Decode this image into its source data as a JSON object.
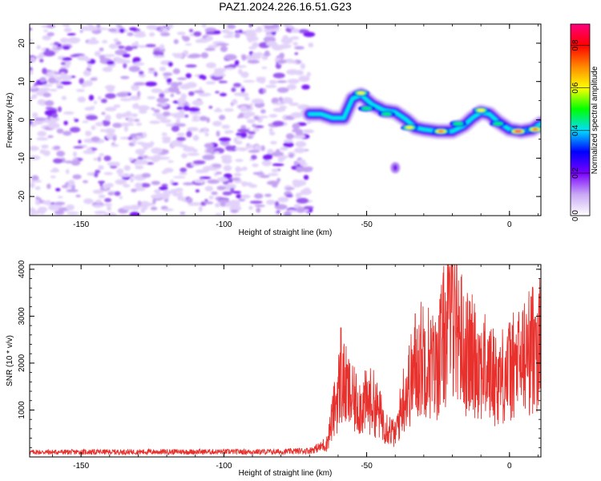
{
  "page": {
    "title": "PAZ1.2024.226.16.51.G23"
  },
  "chart_data": [
    {
      "type": "heatmap",
      "xlabel": "Height of straight line (km)",
      "ylabel": "Frequency (Hz)",
      "xlim": [
        -168,
        11
      ],
      "ylim": [
        -25,
        25
      ],
      "xticks": [
        -150,
        -100,
        -50,
        0
      ],
      "yticks": [
        -20,
        -10,
        0,
        10,
        20
      ],
      "noise_region": {
        "x": [
          -168,
          -70
        ],
        "y": [
          -25,
          25
        ]
      },
      "ridge": [
        {
          "x": -70,
          "y": 1.5
        },
        {
          "x": -66,
          "y": 1.5
        },
        {
          "x": -62,
          "y": 0.5
        },
        {
          "x": -58,
          "y": 0.5
        },
        {
          "x": -55,
          "y": 5.5
        },
        {
          "x": -52,
          "y": 6.5
        },
        {
          "x": -48,
          "y": 4.0
        },
        {
          "x": -44,
          "y": 2.5
        },
        {
          "x": -40,
          "y": 2.0
        },
        {
          "x": -36,
          "y": 0.0
        },
        {
          "x": -33,
          "y": -2.0
        },
        {
          "x": -30,
          "y": -2.5
        },
        {
          "x": -25,
          "y": -3.0
        },
        {
          "x": -20,
          "y": -3.0
        },
        {
          "x": -16,
          "y": -1.5
        },
        {
          "x": -13,
          "y": 0.5
        },
        {
          "x": -10,
          "y": 2.0
        },
        {
          "x": -7,
          "y": 1.5
        },
        {
          "x": -4,
          "y": -0.5
        },
        {
          "x": 0,
          "y": -2.5
        },
        {
          "x": 4,
          "y": -3.0
        },
        {
          "x": 8,
          "y": -2.5
        },
        {
          "x": 11,
          "y": -1.0
        }
      ],
      "peaks": [
        {
          "x": -52,
          "y": 7,
          "amp": 0.6
        },
        {
          "x": -50,
          "y": 3,
          "amp": 0.55
        },
        {
          "x": -43,
          "y": 1.5,
          "amp": 0.55
        },
        {
          "x": -35,
          "y": -2,
          "amp": 0.7
        },
        {
          "x": -24,
          "y": -3,
          "amp": 0.75
        },
        {
          "x": -18,
          "y": -1,
          "amp": 0.5
        },
        {
          "x": -10,
          "y": 2.5,
          "amp": 0.65
        },
        {
          "x": -4,
          "y": -1,
          "amp": 0.5
        },
        {
          "x": 3,
          "y": -3,
          "amp": 0.9
        },
        {
          "x": 9,
          "y": -2.5,
          "amp": 0.75
        }
      ],
      "isolated_blob": {
        "x": -40,
        "y": -12.5
      },
      "colorbar": {
        "label": "Normalized spectral amplitude",
        "range": [
          0,
          0.9
        ],
        "ticks": [
          "0.0",
          "0.2",
          "0.4",
          "0.6",
          "0.8"
        ],
        "colors": [
          "#ffffff",
          "#c9a8f5",
          "#7a00ff",
          "#0000ff",
          "#00ddff",
          "#00ff00",
          "#ffff00",
          "#ff8800",
          "#ff0000",
          "#ff0080"
        ]
      }
    },
    {
      "type": "line",
      "xlabel": "Height of straight line (km)",
      "ylabel": "SNR (10 * v/v)",
      "xlim": [
        -168,
        11
      ],
      "ylim": [
        0,
        4100
      ],
      "xticks": [
        -150,
        -100,
        -50,
        0
      ],
      "yticks": [
        1000,
        2000,
        3000,
        4000
      ],
      "color": "#e8302c",
      "envelope": [
        {
          "x": -168,
          "y": 120
        },
        {
          "x": -120,
          "y": 130
        },
        {
          "x": -80,
          "y": 130
        },
        {
          "x": -70,
          "y": 160
        },
        {
          "x": -64,
          "y": 300
        },
        {
          "x": -62,
          "y": 900
        },
        {
          "x": -59,
          "y": 1800
        },
        {
          "x": -55,
          "y": 1300
        },
        {
          "x": -52,
          "y": 1200
        },
        {
          "x": -48,
          "y": 1300
        },
        {
          "x": -44,
          "y": 800
        },
        {
          "x": -40,
          "y": 500
        },
        {
          "x": -37,
          "y": 1400
        },
        {
          "x": -33,
          "y": 2000
        },
        {
          "x": -30,
          "y": 2400
        },
        {
          "x": -26,
          "y": 2000
        },
        {
          "x": -22,
          "y": 3000
        },
        {
          "x": -19,
          "y": 3500
        },
        {
          "x": -16,
          "y": 2400
        },
        {
          "x": -12,
          "y": 2300
        },
        {
          "x": -8,
          "y": 2000
        },
        {
          "x": -4,
          "y": 1800
        },
        {
          "x": 0,
          "y": 2000
        },
        {
          "x": 4,
          "y": 2200
        },
        {
          "x": 8,
          "y": 2500
        },
        {
          "x": 11,
          "y": 2600
        }
      ],
      "peaks": [
        {
          "x": -59,
          "y": 2750
        },
        {
          "x": -33,
          "y": 3050
        },
        {
          "x": -20,
          "y": 4100
        },
        {
          "x": 9,
          "y": 2980
        }
      ]
    }
  ]
}
